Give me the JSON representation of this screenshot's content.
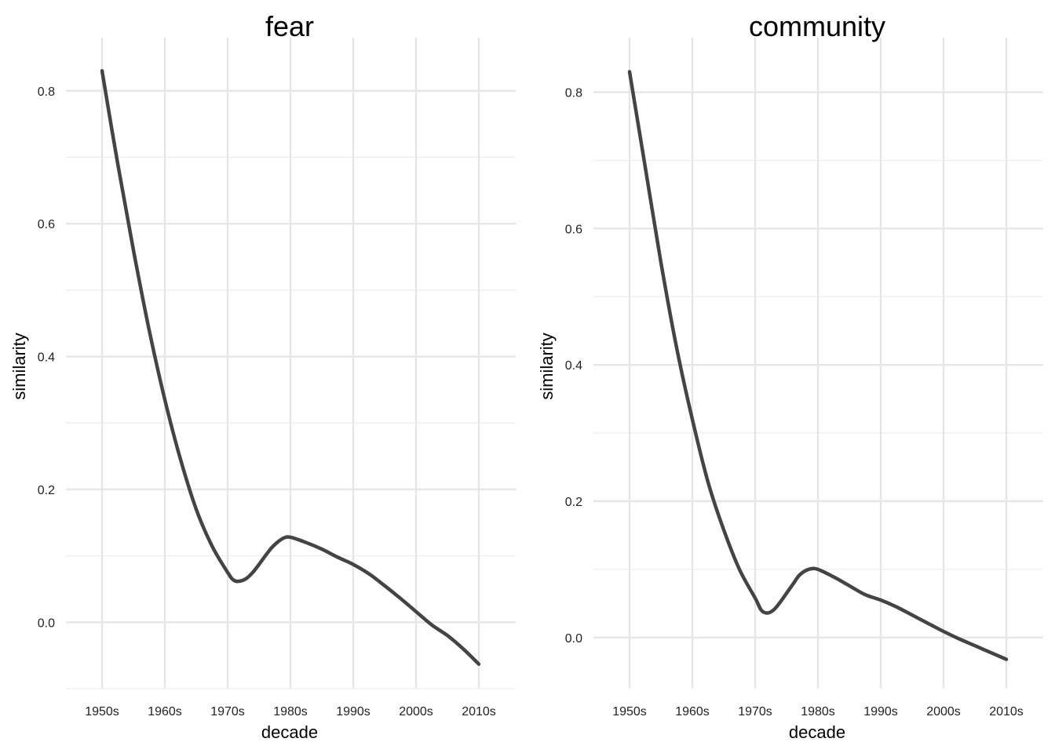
{
  "chart_data": [
    {
      "type": "line",
      "title": "fear",
      "xlabel": "decade",
      "ylabel": "similarity",
      "categories": [
        "1950s",
        "1960s",
        "1970s",
        "1980s",
        "1990s",
        "2000s",
        "2010s"
      ],
      "y_ticks": [
        "0.0",
        "0.2",
        "0.4",
        "0.6",
        "0.8"
      ],
      "ylim": [
        -0.1,
        0.88
      ],
      "grid": true,
      "line_color": "#444444",
      "series": [
        {
          "x": [
            1950,
            1952.5,
            1955,
            1957.5,
            1960,
            1962.5,
            1965,
            1967.5,
            1970,
            1971,
            1972,
            1973,
            1974,
            1975,
            1976,
            1977,
            1978,
            1979,
            1980,
            1982.5,
            1985,
            1987.5,
            1990,
            1992.5,
            1995,
            1997.5,
            2000,
            2002.5,
            2005,
            2007.5,
            2010
          ],
          "y": [
            0.83,
            0.69,
            0.56,
            0.44,
            0.335,
            0.245,
            0.17,
            0.115,
            0.075,
            0.063,
            0.062,
            0.066,
            0.075,
            0.087,
            0.1,
            0.112,
            0.121,
            0.127,
            0.128,
            0.12,
            0.11,
            0.098,
            0.087,
            0.073,
            0.055,
            0.036,
            0.016,
            -0.004,
            -0.02,
            -0.04,
            -0.063
          ]
        }
      ]
    },
    {
      "type": "line",
      "title": "community",
      "xlabel": "decade",
      "ylabel": "similarity",
      "categories": [
        "1950s",
        "1960s",
        "1970s",
        "1980s",
        "1990s",
        "2000s",
        "2010s"
      ],
      "y_ticks": [
        "0.0",
        "0.2",
        "0.4",
        "0.6",
        "0.8"
      ],
      "ylim": [
        -0.075,
        0.88
      ],
      "grid": true,
      "line_color": "#444444",
      "series": [
        {
          "x": [
            1950,
            1952.5,
            1955,
            1957.5,
            1960,
            1962.5,
            1965,
            1967.5,
            1970,
            1971,
            1972,
            1973,
            1974,
            1975,
            1976,
            1977,
            1978,
            1979,
            1980,
            1982.5,
            1985,
            1987.5,
            1990,
            1992.5,
            1995,
            1997.5,
            2000,
            2002.5,
            2005,
            2007.5,
            2010
          ],
          "y": [
            0.83,
            0.69,
            0.55,
            0.425,
            0.32,
            0.228,
            0.158,
            0.1,
            0.058,
            0.04,
            0.036,
            0.041,
            0.052,
            0.065,
            0.078,
            0.091,
            0.098,
            0.101,
            0.1,
            0.089,
            0.076,
            0.063,
            0.055,
            0.045,
            0.033,
            0.021,
            0.009,
            -0.002,
            -0.012,
            -0.022,
            -0.032
          ]
        }
      ]
    }
  ]
}
